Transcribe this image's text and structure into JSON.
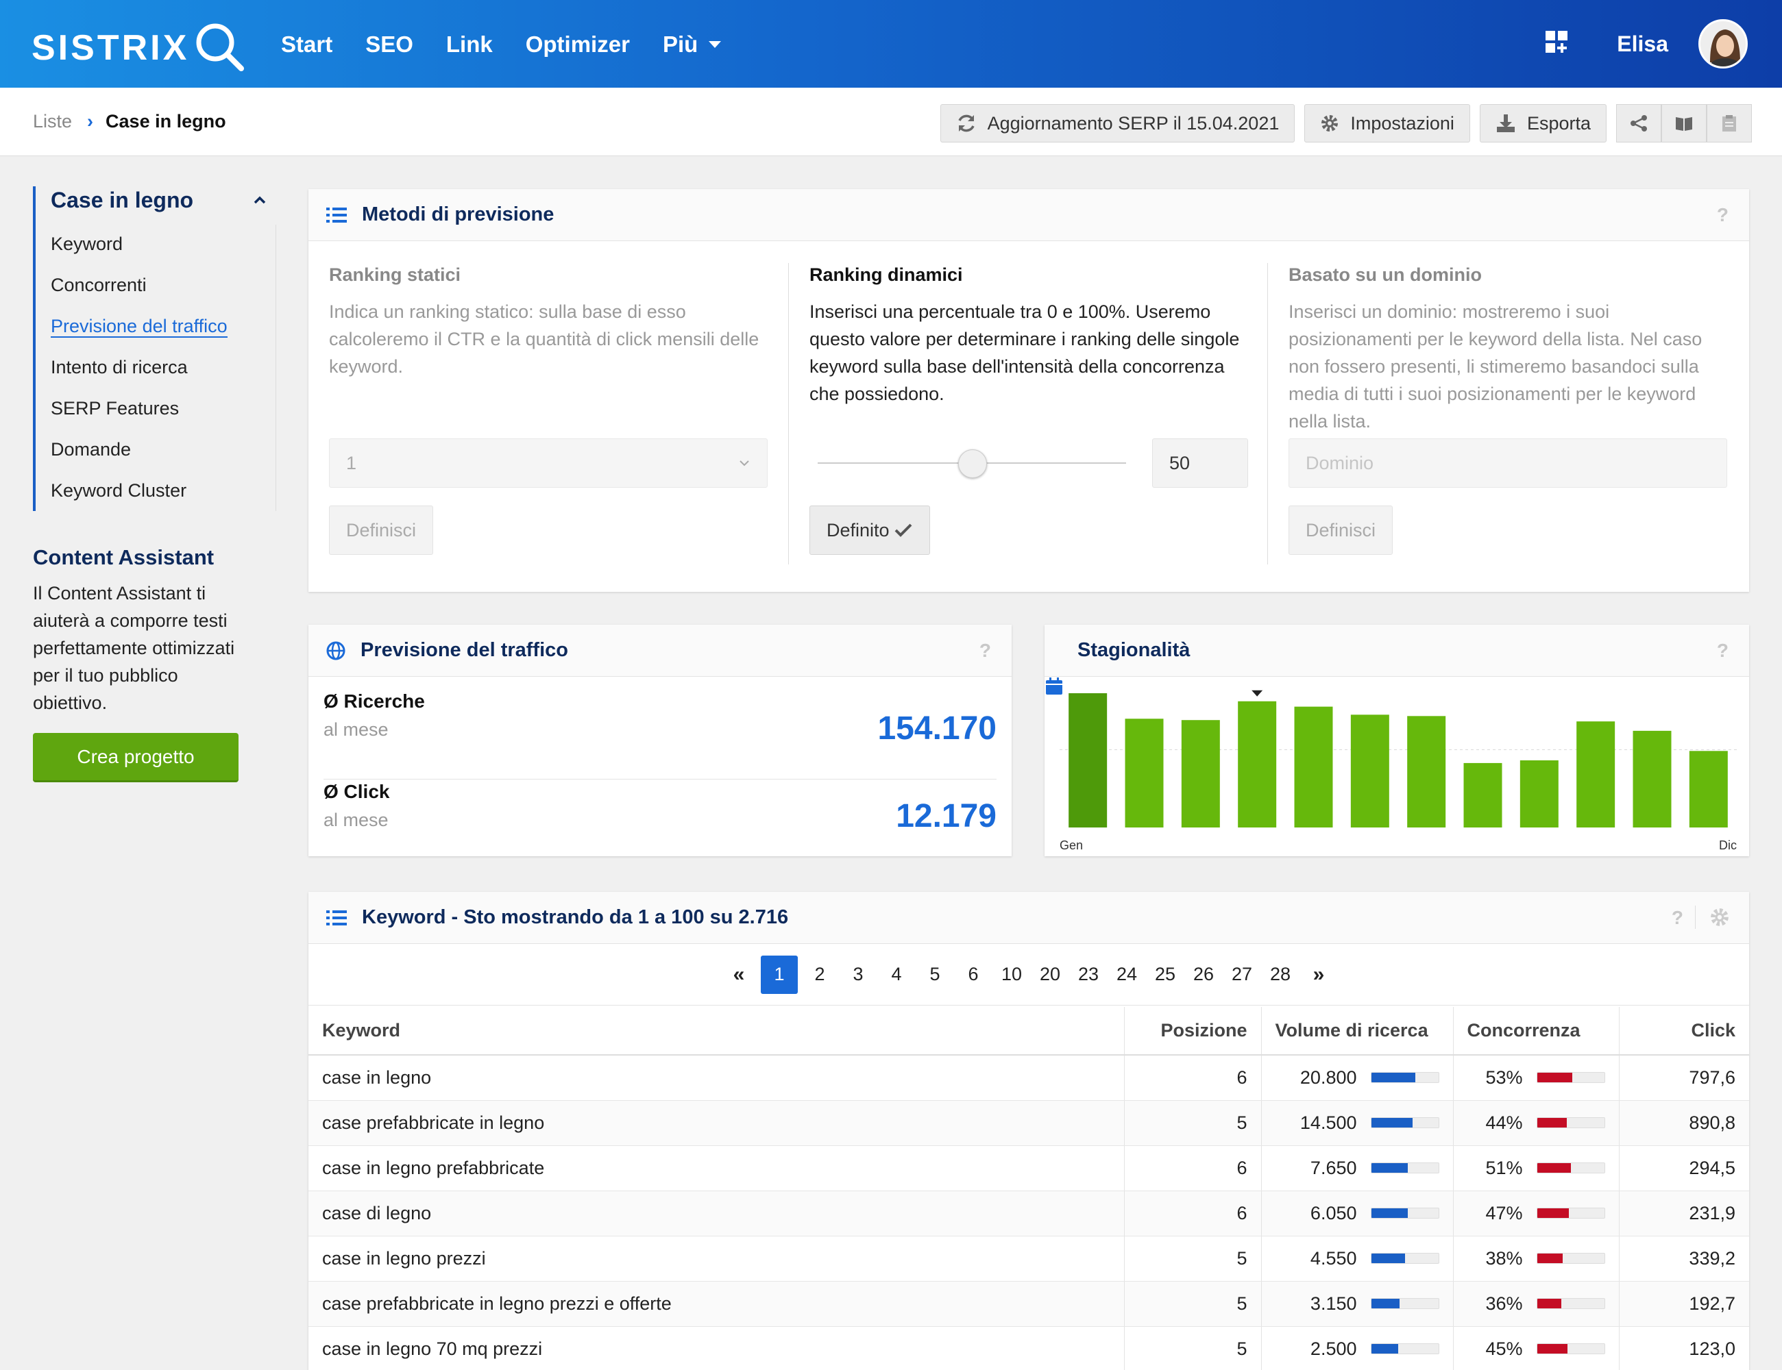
{
  "header": {
    "logo": "SISTRIX",
    "nav": [
      "Start",
      "SEO",
      "Link",
      "Optimizer",
      "Più"
    ],
    "user": "Elisa"
  },
  "breadcrumb": {
    "root": "Liste",
    "current": "Case in legno"
  },
  "toolbar": {
    "serp_update": "Aggiornamento SERP il 15.04.2021",
    "settings": "Impostazioni",
    "export": "Esporta"
  },
  "sidebar": {
    "title": "Case in legno",
    "items": [
      "Keyword",
      "Concorrenti",
      "Previsione del traffico",
      "Intento di ricerca",
      "SERP Features",
      "Domande",
      "Keyword Cluster"
    ],
    "active_index": 2,
    "content_assistant": {
      "title": "Content Assistant",
      "text": "Il Content Assistant ti aiuterà a comporre testi perfettamente ottimizzati per il tuo pubblico obiettivo.",
      "button": "Crea progetto"
    }
  },
  "methods": {
    "title": "Metodi di previsione",
    "help": "?",
    "static": {
      "title": "Ranking statici",
      "text": "Indica un ranking statico: sulla base di esso calcoleremo il CTR e la quantità di click mensili delle keyword.",
      "select_value": "1",
      "button": "Definisci"
    },
    "dynamic": {
      "title": "Ranking dinamici",
      "text": "Inserisci una percentuale tra 0 e 100%. Useremo questo valore per determinare i ranking delle singole keyword sulla base dell'intensità della concorrenza che possiedono.",
      "slider_value": "50",
      "button": "Definito"
    },
    "domain": {
      "title": "Basato su un dominio",
      "text": "Inserisci un dominio: mostreremo i suoi posizionamenti per le keyword della lista. Nel caso non fossero presenti, li stimeremo basandoci sulla media di tutti i suoi posizionamenti per le keyword nella lista.",
      "placeholder": "Dominio",
      "button": "Definisci"
    }
  },
  "traffic": {
    "title": "Previsione del traffico",
    "help": "?",
    "searches_label": "Ø Ricerche",
    "searches_sub": "al mese",
    "searches_value": "154.170",
    "clicks_label": "Ø Click",
    "clicks_sub": "al mese",
    "clicks_value": "12.179"
  },
  "seasonality": {
    "title": "Stagionalità",
    "help": "?",
    "first_label": "Gen",
    "last_label": "Dic",
    "marker_index": 3,
    "colors": {
      "first": "#4e9a0a",
      "bar": "#66b80c"
    }
  },
  "chart_data": {
    "type": "bar",
    "categories": [
      "1",
      "2",
      "3",
      "4",
      "5",
      "6",
      "7",
      "8",
      "9",
      "10",
      "11",
      "12"
    ],
    "values": [
      100,
      81,
      80,
      94,
      90,
      84,
      83,
      48,
      50,
      79,
      72,
      57
    ],
    "ylim": [
      0,
      100
    ],
    "tick_labels": [
      "Gen",
      "Dic"
    ]
  },
  "keywords": {
    "title": "Keyword - Sto mostrando da 1 a 100 su 2.716",
    "help": "?",
    "pages": [
      "1",
      "2",
      "3",
      "4",
      "5",
      "6",
      "10",
      "20",
      "23",
      "24",
      "25",
      "26",
      "27",
      "28"
    ],
    "current_page": "1",
    "columns": [
      "Keyword",
      "Posizione",
      "Volume di ricerca",
      "Concorrenza",
      "Click"
    ],
    "rows": [
      {
        "keyword": "case in legno",
        "position": "6",
        "volume": "20.800",
        "volume_pct": 0.66,
        "competition": "53%",
        "competition_pct": 0.53,
        "clicks": "797,6"
      },
      {
        "keyword": "case prefabbricate in legno",
        "position": "5",
        "volume": "14.500",
        "volume_pct": 0.62,
        "competition": "44%",
        "competition_pct": 0.44,
        "clicks": "890,8"
      },
      {
        "keyword": "case in legno prefabbricate",
        "position": "6",
        "volume": "7.650",
        "volume_pct": 0.55,
        "competition": "51%",
        "competition_pct": 0.51,
        "clicks": "294,5"
      },
      {
        "keyword": "case di legno",
        "position": "6",
        "volume": "6.050",
        "volume_pct": 0.55,
        "competition": "47%",
        "competition_pct": 0.47,
        "clicks": "231,9"
      },
      {
        "keyword": "case in legno prezzi",
        "position": "5",
        "volume": "4.550",
        "volume_pct": 0.5,
        "competition": "38%",
        "competition_pct": 0.38,
        "clicks": "339,2"
      },
      {
        "keyword": "case prefabbricate in legno prezzi e offerte",
        "position": "5",
        "volume": "3.150",
        "volume_pct": 0.42,
        "competition": "36%",
        "competition_pct": 0.36,
        "clicks": "192,7"
      },
      {
        "keyword": "case in legno 70 mq prezzi",
        "position": "5",
        "volume": "2.500",
        "volume_pct": 0.4,
        "competition": "45%",
        "competition_pct": 0.45,
        "clicks": "123,0"
      }
    ]
  }
}
